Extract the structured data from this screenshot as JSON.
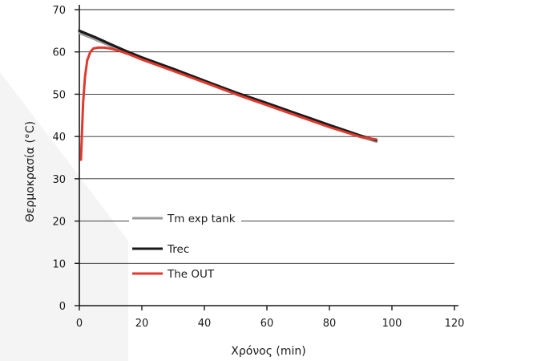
{
  "chart_data": {
    "type": "line",
    "title": "",
    "xlabel": "Χρόνος (min)",
    "ylabel": "Θερμοκρασία (°C)",
    "xlim": [
      0,
      120
    ],
    "ylim": [
      0,
      70
    ],
    "xticks": [
      0,
      20,
      40,
      60,
      80,
      100,
      120
    ],
    "yticks": [
      0,
      10,
      20,
      30,
      40,
      50,
      60,
      70
    ],
    "grid": "horizontal",
    "legend_position": "lower-left",
    "series": [
      {
        "name": "Tm exp tank",
        "color": "#9a9a9a",
        "x": [
          0,
          5,
          10,
          15,
          20,
          30,
          40,
          50,
          60,
          70,
          80,
          90,
          95
        ],
        "y": [
          64.5,
          63.0,
          61.4,
          59.9,
          58.4,
          55.7,
          52.9,
          50.1,
          47.6,
          45.0,
          42.4,
          39.9,
          38.8
        ]
      },
      {
        "name": "Trec",
        "color": "#1a1a1a",
        "x": [
          0,
          5,
          10,
          15,
          20,
          30,
          40,
          50,
          60,
          70,
          80,
          90,
          95
        ],
        "y": [
          65.0,
          63.5,
          61.8,
          60.2,
          58.7,
          56.0,
          53.2,
          50.4,
          47.9,
          45.3,
          42.7,
          40.2,
          39.1
        ]
      },
      {
        "name": "The OUT",
        "color": "#e03a2f",
        "x": [
          0.5,
          0.8,
          1.2,
          1.8,
          2.5,
          3.5,
          4.5,
          6,
          8,
          10,
          13,
          16,
          20,
          30,
          40,
          50,
          60,
          70,
          80,
          90,
          95
        ],
        "y": [
          34.5,
          40,
          48,
          54,
          58,
          60,
          60.8,
          61.0,
          61.0,
          60.8,
          60.2,
          59.4,
          58.2,
          55.5,
          52.8,
          50.0,
          47.4,
          44.8,
          42.2,
          39.9,
          39.3
        ]
      }
    ]
  }
}
